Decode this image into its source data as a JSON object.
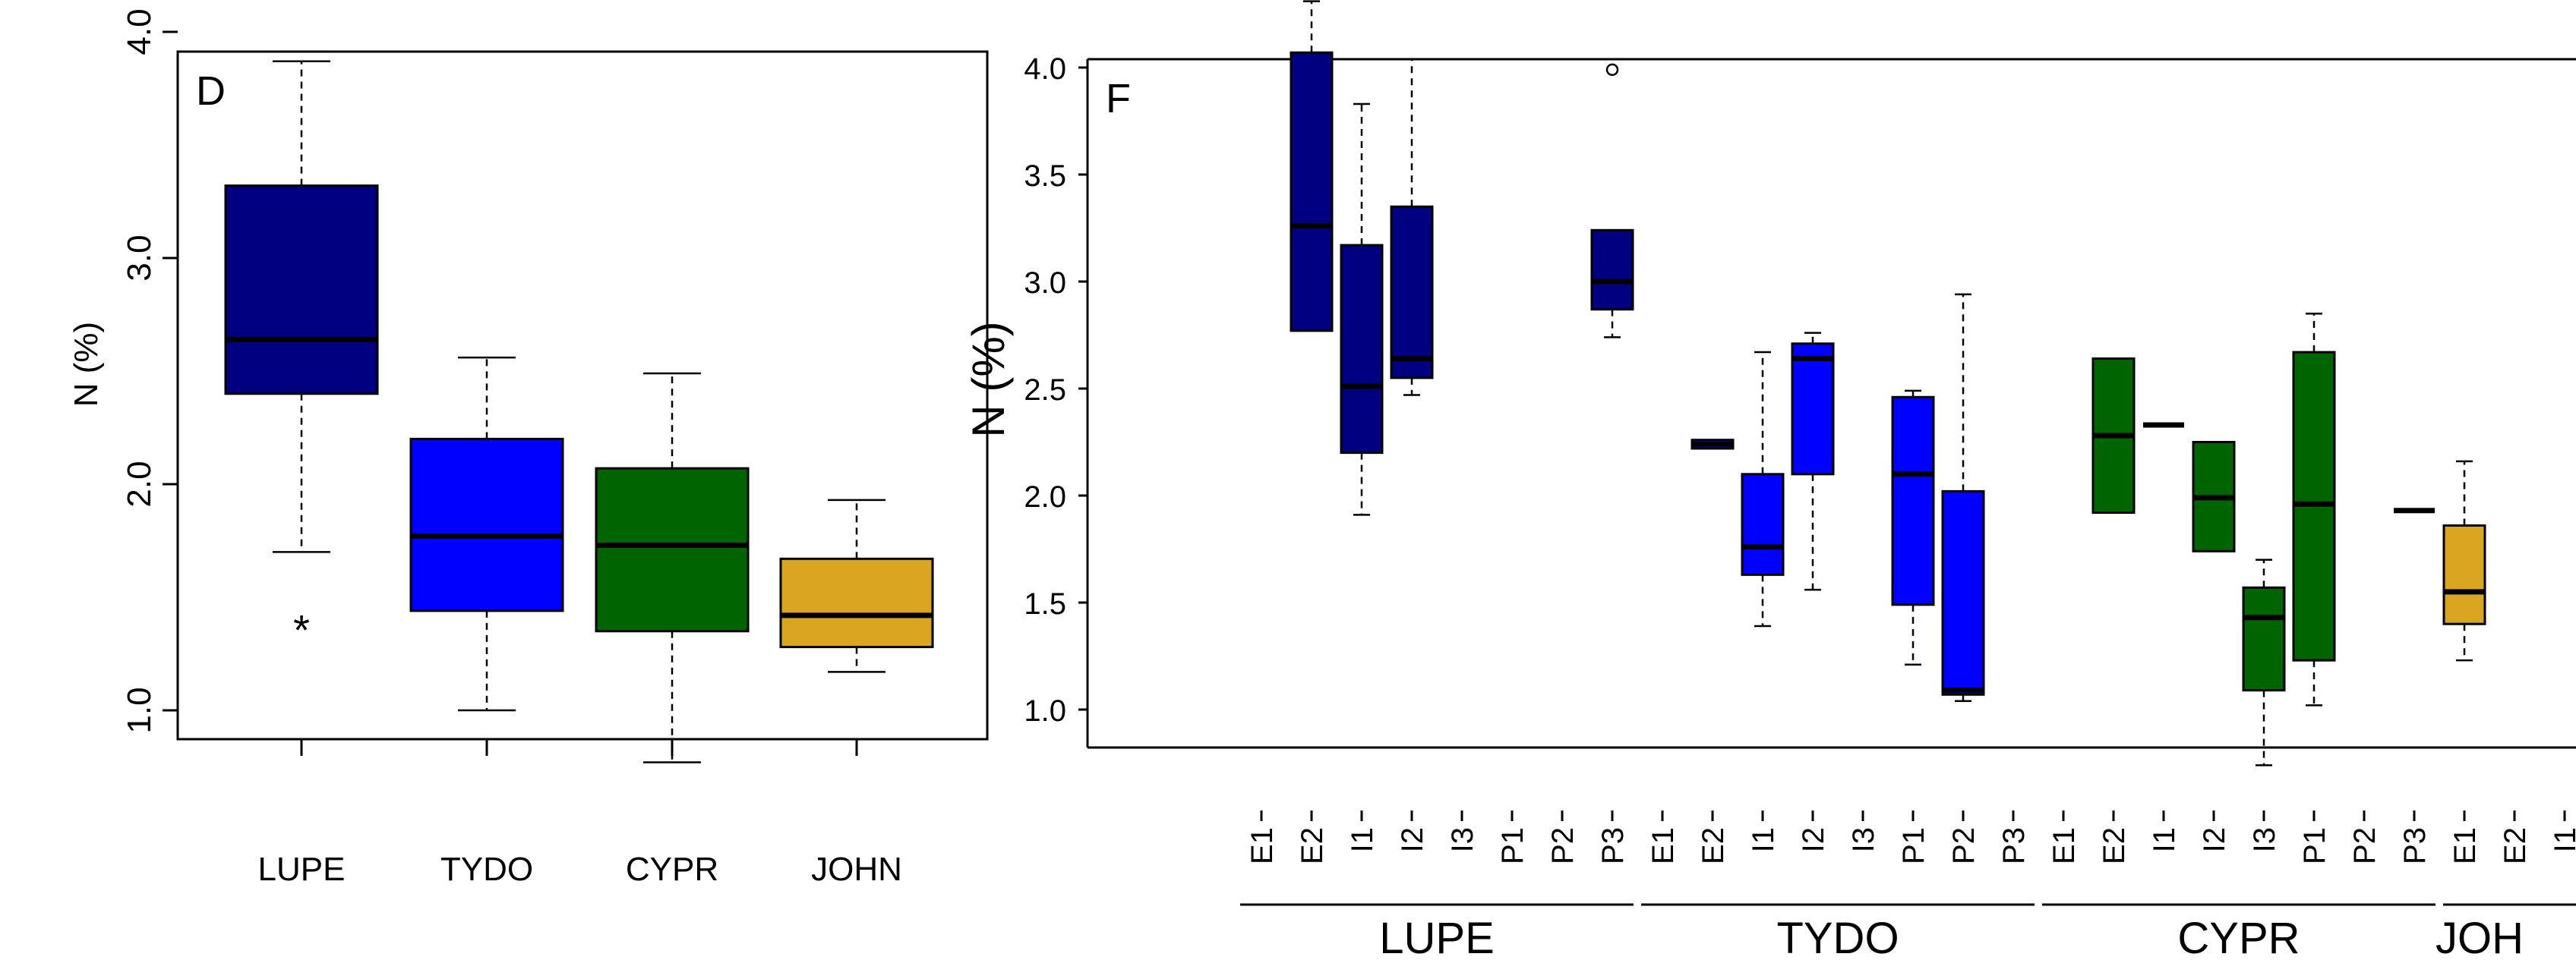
{
  "colors": {
    "LUPE": "#000080",
    "TYDO": "#0000ff",
    "CYPR": "#006400",
    "JOHN": "#daa520"
  },
  "chart_data": [
    {
      "type": "box",
      "panel_label": "D",
      "ylabel": "N (%)",
      "ylim": [
        0.65,
        4.0
      ],
      "yticks": [
        "1.0",
        "2.0",
        "3.0",
        "4.0"
      ],
      "categories": [
        "LUPE",
        "TYDO",
        "CYPR",
        "JOHN"
      ],
      "boxes": [
        {
          "group": "LUPE",
          "min": 1.7,
          "q1": 2.4,
          "median": 2.64,
          "q3": 3.32,
          "max": 3.87,
          "outliers": [
            {
              "value": 1.37,
              "symbol": "*"
            }
          ]
        },
        {
          "group": "TYDO",
          "min": 1.0,
          "q1": 1.44,
          "median": 1.77,
          "q3": 2.2,
          "max": 2.56,
          "outliers": []
        },
        {
          "group": "CYPR",
          "min": 0.77,
          "q1": 1.35,
          "median": 1.73,
          "q3": 2.07,
          "max": 2.49,
          "outliers": []
        },
        {
          "group": "JOHN",
          "min": 1.17,
          "q1": 1.28,
          "median": 1.42,
          "q3": 1.67,
          "max": 1.93,
          "outliers": []
        }
      ]
    },
    {
      "type": "box",
      "panel_label": "F",
      "ylabel": "N (%)",
      "ylim": [
        0.6,
        4.45
      ],
      "yticks": [
        "1.0",
        "1.5",
        "2.0",
        "2.5",
        "3.0",
        "3.5",
        "4.0"
      ],
      "categories": [
        "E1",
        "E2",
        "I1",
        "I2",
        "I3",
        "P1",
        "P2",
        "P3",
        "E1",
        "E2",
        "I1",
        "I2",
        "I3",
        "P1",
        "P2",
        "P3",
        "E1",
        "E2",
        "I1",
        "I2",
        "I3",
        "P1",
        "P2",
        "P3",
        "E1",
        "E2",
        "I1"
      ],
      "groups": [
        {
          "label": "LUPE",
          "start": 0,
          "end": 7
        },
        {
          "label": "TYDO",
          "start": 8,
          "end": 15
        },
        {
          "label": "CYPR",
          "start": 16,
          "end": 23
        },
        {
          "label": "JOH",
          "start": 24,
          "end": 26
        }
      ],
      "boxes": [
        {
          "index": 1,
          "group": "LUPE",
          "min": 2.77,
          "q1": 2.77,
          "median": 3.26,
          "q3": 4.07,
          "max": 4.31,
          "outliers": []
        },
        {
          "index": 2,
          "group": "LUPE",
          "min": 1.91,
          "q1": 2.2,
          "median": 2.51,
          "q3": 3.17,
          "max": 3.83,
          "outliers": []
        },
        {
          "index": 3,
          "group": "LUPE",
          "min": 2.47,
          "q1": 2.55,
          "median": 2.64,
          "q3": 3.35,
          "max": 4.04,
          "outliers": []
        },
        {
          "index": 7,
          "group": "LUPE",
          "min": 2.74,
          "q1": 2.87,
          "median": 3.0,
          "q3": 3.24,
          "max": 3.24,
          "outliers": [
            {
              "value": 3.99,
              "symbol": "o"
            }
          ]
        },
        {
          "index": 9,
          "group": "TYDO",
          "min": 2.22,
          "q1": 2.22,
          "median": 2.24,
          "q3": 2.26,
          "max": 2.26,
          "outliers": []
        },
        {
          "index": 10,
          "group": "TYDO",
          "min": 1.39,
          "q1": 1.63,
          "median": 1.76,
          "q3": 2.1,
          "max": 2.67,
          "outliers": []
        },
        {
          "index": 11,
          "group": "TYDO",
          "min": 1.56,
          "q1": 2.1,
          "median": 2.64,
          "q3": 2.71,
          "max": 2.76,
          "outliers": []
        },
        {
          "index": 13,
          "group": "TYDO",
          "min": 1.21,
          "q1": 1.49,
          "median": 2.1,
          "q3": 2.46,
          "max": 2.49,
          "outliers": []
        },
        {
          "index": 14,
          "group": "TYDO",
          "min": 1.04,
          "q1": 1.07,
          "median": 1.09,
          "q3": 2.02,
          "max": 2.94,
          "outliers": []
        },
        {
          "index": 17,
          "group": "CYPR",
          "min": 1.92,
          "q1": 1.92,
          "median": 2.28,
          "q3": 2.64,
          "max": 2.64,
          "outliers": []
        },
        {
          "index": 18,
          "group": "CYPR",
          "min": 2.33,
          "q1": 2.33,
          "median": 2.33,
          "q3": 2.33,
          "max": 2.33,
          "outliers": []
        },
        {
          "index": 19,
          "group": "CYPR",
          "min": 1.74,
          "q1": 1.74,
          "median": 1.99,
          "q3": 2.25,
          "max": 2.25,
          "outliers": []
        },
        {
          "index": 20,
          "group": "CYPR",
          "min": 0.74,
          "q1": 1.09,
          "median": 1.43,
          "q3": 1.57,
          "max": 1.7,
          "outliers": []
        },
        {
          "index": 21,
          "group": "CYPR",
          "min": 1.02,
          "q1": 1.23,
          "median": 1.96,
          "q3": 2.67,
          "max": 2.85,
          "outliers": []
        },
        {
          "index": 23,
          "group": "CYPR",
          "min": 1.93,
          "q1": 1.93,
          "median": 1.93,
          "q3": 1.93,
          "max": 1.93,
          "outliers": []
        },
        {
          "index": 24,
          "group": "JOHN",
          "min": 1.23,
          "q1": 1.4,
          "median": 1.55,
          "q3": 1.86,
          "max": 2.16,
          "outliers": []
        }
      ]
    }
  ]
}
